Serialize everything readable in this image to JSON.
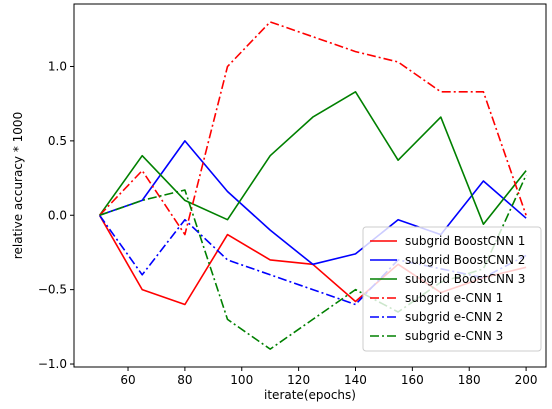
{
  "chart_data": {
    "type": "line",
    "title": "",
    "xlabel": "iterate(epochs)",
    "ylabel": "relative accuracy * 1000",
    "xlim": [
      41,
      207
    ],
    "ylim": [
      -1.02,
      1.42
    ],
    "xticks": [
      60,
      80,
      100,
      120,
      140,
      160,
      180,
      200
    ],
    "yticks": [
      -1.0,
      -0.5,
      0.0,
      0.5,
      1.0
    ],
    "xtick_labels": [
      "60",
      "80",
      "100",
      "120",
      "140",
      "160",
      "180",
      "200"
    ],
    "ytick_labels": [
      "−1.0",
      "−0.5",
      "0.0",
      "0.5",
      "1.0"
    ],
    "grid": false,
    "legend_position": "lower-right",
    "x": [
      50,
      65,
      80,
      95,
      110,
      125,
      140,
      155,
      170,
      185,
      200
    ],
    "series": [
      {
        "name": "subgrid BoostCNN 1",
        "color": "#ff0000",
        "style": "solid",
        "values": [
          0.0,
          -0.5,
          -0.6,
          -0.13,
          -0.3,
          -0.33,
          -0.58,
          -0.33,
          -0.52,
          -0.42,
          -0.35
        ]
      },
      {
        "name": "subgrid BoostCNN 2",
        "color": "#0000ff",
        "style": "solid",
        "values": [
          0.0,
          0.1,
          0.5,
          0.16,
          -0.1,
          -0.33,
          -0.26,
          -0.03,
          -0.13,
          0.23,
          -0.02
        ]
      },
      {
        "name": "subgrid BoostCNN 3",
        "color": "#008000",
        "style": "solid",
        "values": [
          0.0,
          0.4,
          0.1,
          -0.03,
          0.4,
          0.66,
          0.83,
          0.37,
          0.66,
          -0.06,
          0.3
        ]
      },
      {
        "name": "subgrid e-CNN 1",
        "color": "#ff0000",
        "style": "dashdot",
        "values": [
          0.0,
          0.3,
          -0.13,
          1.0,
          1.3,
          1.2,
          1.1,
          1.03,
          0.83,
          0.83,
          0.0
        ]
      },
      {
        "name": "subgrid e-CNN 2",
        "color": "#0000ff",
        "style": "dashdot",
        "values": [
          0.0,
          -0.4,
          -0.03,
          -0.3,
          -0.4,
          -0.5,
          -0.6,
          -0.3,
          -0.36,
          -0.42,
          -0.27
        ]
      },
      {
        "name": "subgrid e-CNN 3",
        "color": "#008000",
        "style": "dashdot",
        "values": [
          0.0,
          0.1,
          0.17,
          -0.7,
          -0.9,
          -0.7,
          -0.5,
          -0.65,
          -0.45,
          -0.36,
          0.27
        ]
      }
    ]
  }
}
